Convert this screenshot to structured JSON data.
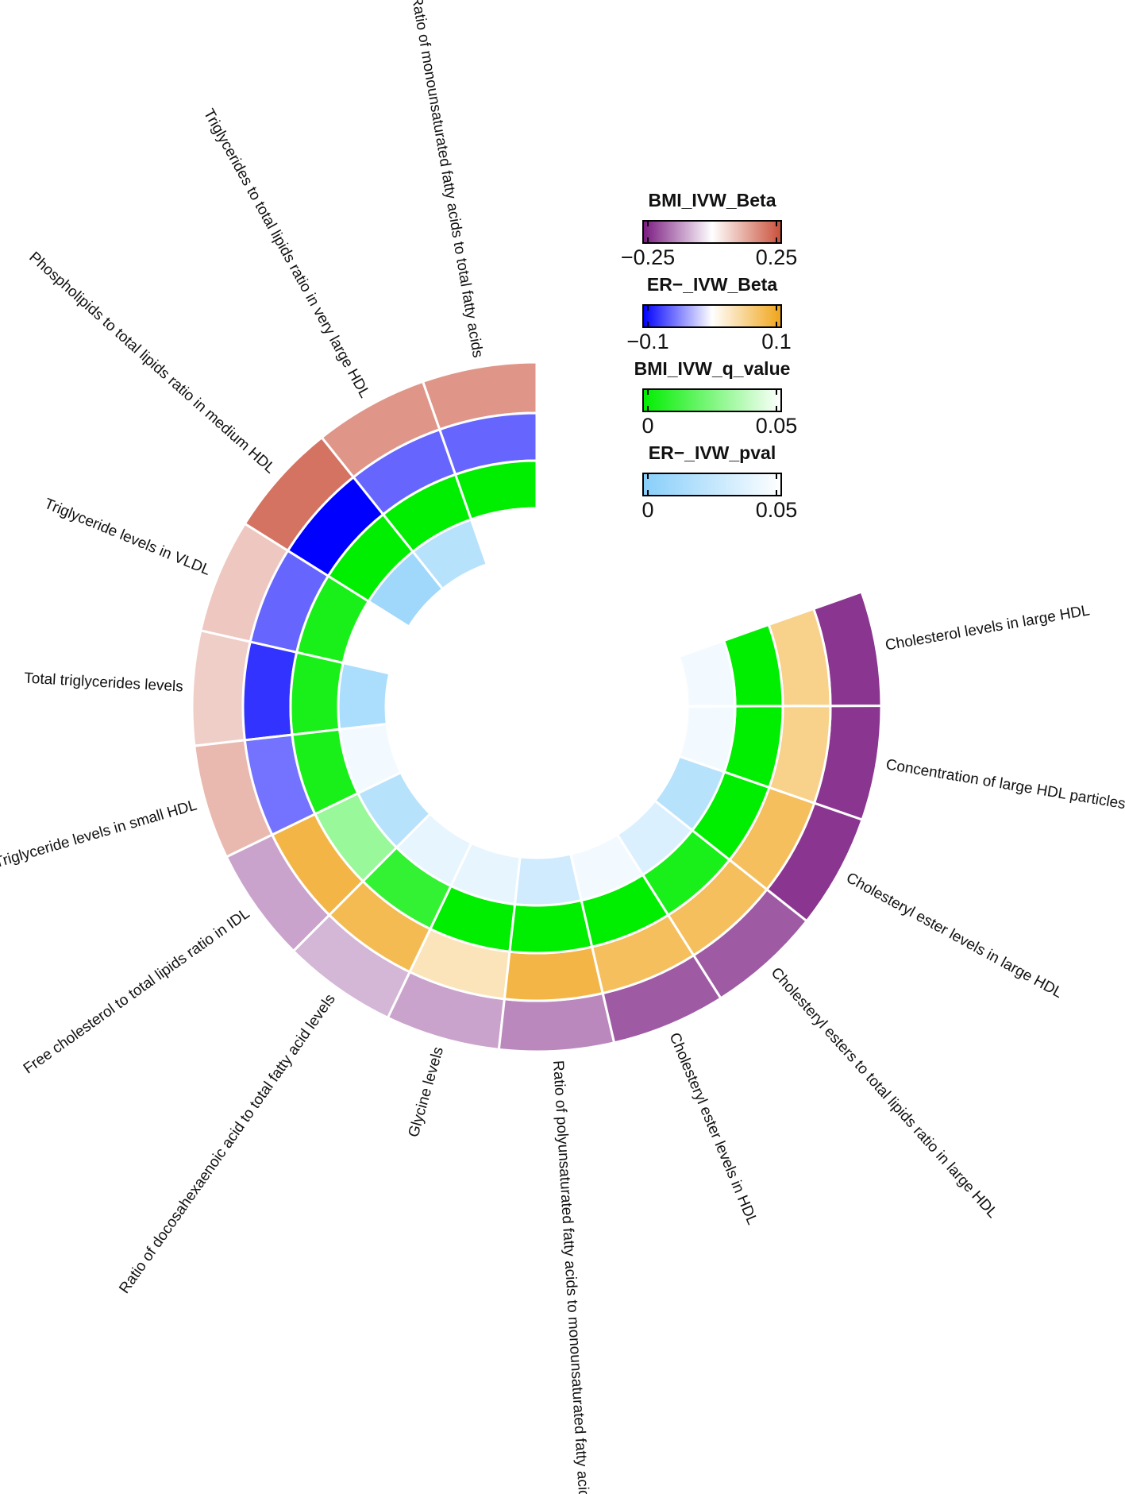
{
  "chart_data": {
    "type": "circular-heatmap",
    "categories": [
      "Ratio of monounsaturated fatty acids to total fatty acids",
      "Triglycerides to total lipids ratio in very large HDL",
      "Phospholipids to total lipids ratio in medium HDL",
      "Triglyceride levels in VLDL",
      "Total triglycerides levels",
      "Triglyceride levels in small HDL",
      "Free cholesterol to total lipids ratio in IDL",
      "Ratio of docosahexaenoic acid to total fatty acid levels",
      "Glycine levels",
      "Ratio of polyunsaturated fatty acids to monounsaturated fatty acids",
      "Cholesteryl ester levels in HDL",
      "Cholesteryl esters to total lipids ratio in large HDL",
      "Cholesteryl ester levels in large HDL",
      "Concentration of large HDL particles",
      "Cholesterol levels in large HDL"
    ],
    "series": [
      {
        "name": "BMI_IVW_Beta",
        "colors": [
          "#7a1a80",
          "#ffffff",
          "#c9503a"
        ],
        "lim": [
          -0.25,
          0.25
        ],
        "ticks": [
          {
            "value": -0.25,
            "label": "−0.25"
          },
          0.25
        ],
        "values": [
          0.15,
          0.15,
          0.2,
          0.08,
          0.07,
          0.1,
          -0.1,
          -0.08,
          -0.1,
          -0.13,
          -0.18,
          -0.18,
          -0.22,
          -0.22,
          -0.22
        ]
      },
      {
        "name": "ER−_IVW_Beta",
        "colors": [
          "#0000ff",
          "#ffffff",
          "#f0a418"
        ],
        "lim": [
          -0.1,
          0.1
        ],
        "ticks": [
          {
            "value": -0.1,
            "label": "−0.1"
          },
          0.1
        ],
        "values": [
          -0.06,
          -0.06,
          -0.1,
          -0.06,
          -0.08,
          -0.055,
          0.08,
          0.075,
          0.03,
          0.08,
          0.07,
          0.07,
          0.07,
          0.05,
          0.05
        ]
      },
      {
        "name": "BMI_IVW_q_value",
        "colors": [
          "#00ee00",
          "#ffffff"
        ],
        "lim": [
          0,
          0.05
        ],
        "ticks": [
          0,
          0.05
        ],
        "values": [
          0,
          0,
          0,
          0.005,
          0.005,
          0.005,
          0.03,
          0.01,
          0,
          0,
          0,
          0.005,
          0,
          0,
          0
        ]
      },
      {
        "name": "ER−_IVW_pval",
        "colors": [
          "#87cefa",
          "#ffffff"
        ],
        "lim": [
          0,
          0.05
        ],
        "ticks": [
          0,
          0.05
        ],
        "values": [
          0.05,
          0.02,
          0.01,
          0.05,
          0.015,
          0.045,
          0.02,
          0.04,
          0.04,
          0.03,
          0.045,
          0.035,
          0.02,
          0.045,
          0.045
        ]
      }
    ]
  }
}
